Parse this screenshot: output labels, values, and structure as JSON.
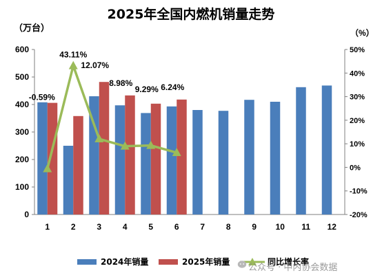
{
  "chart_data": {
    "type": "bar",
    "title": "2025年全国内燃机销量走势",
    "left_unit": "（万台）",
    "right_unit": "（%）",
    "categories": [
      "1",
      "2",
      "3",
      "4",
      "5",
      "6",
      "7",
      "8",
      "9",
      "10",
      "11",
      "12"
    ],
    "series": [
      {
        "name": "2024年销量",
        "type": "bar",
        "color": "#4a7ebb",
        "values": [
          408,
          250,
          430,
          397,
          369,
          393,
          380,
          377,
          417,
          410,
          463,
          469
        ]
      },
      {
        "name": "2025年销量",
        "type": "bar",
        "color": "#c0504d",
        "values": [
          406,
          358,
          482,
          433,
          403,
          418,
          null,
          null,
          null,
          null,
          null,
          null
        ]
      },
      {
        "name": "同比增长率",
        "type": "line",
        "axis": "right",
        "color": "#9bbb59",
        "values": [
          -0.59,
          43.11,
          12.07,
          8.98,
          9.29,
          6.24,
          null,
          null,
          null,
          null,
          null,
          null
        ],
        "labels": [
          "-0.59%",
          "43.11%",
          "12.07%",
          "8.98%",
          "9.29%",
          "6.24%"
        ]
      }
    ],
    "ylim_left": [
      0,
      600
    ],
    "yticks_left": [
      "0",
      "100",
      "200",
      "300",
      "400",
      "500",
      "600"
    ],
    "ylim_right": [
      -20,
      50
    ],
    "yticks_right": [
      "-20%",
      "-10%",
      "0%",
      "10%",
      "20%",
      "30%",
      "40%",
      "50%"
    ],
    "legend_position": "bottom",
    "grid": false
  },
  "watermark": "公众号 · 中内协会数据"
}
